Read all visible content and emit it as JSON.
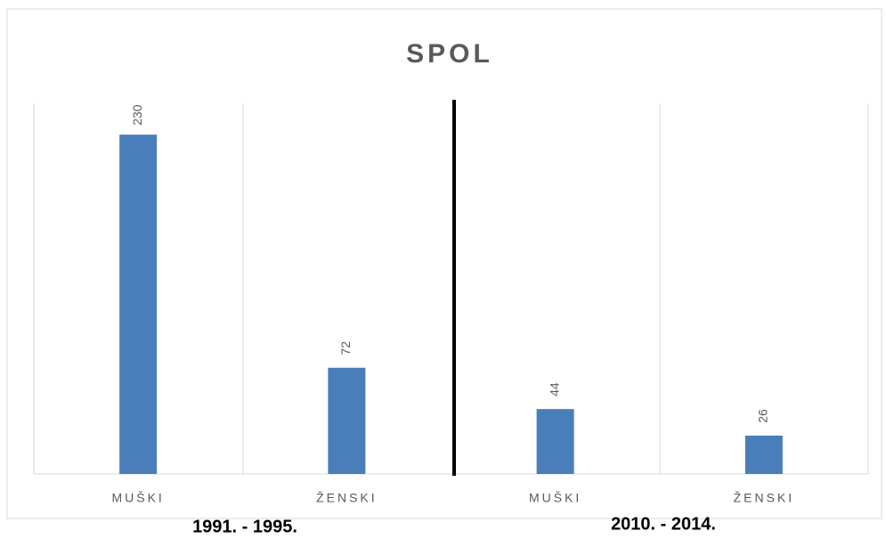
{
  "chart_data": {
    "type": "bar",
    "title": "SPOL",
    "categories": [
      "MUŠKI",
      "ŽENSKI",
      "MUŠKI",
      "ŽENSKI"
    ],
    "values": [
      230,
      72,
      44,
      26
    ],
    "color": "#4a7ebb",
    "ylim": [
      0,
      250
    ],
    "annotations": [
      "1991. - 1995.",
      "2010. - 2014."
    ]
  }
}
